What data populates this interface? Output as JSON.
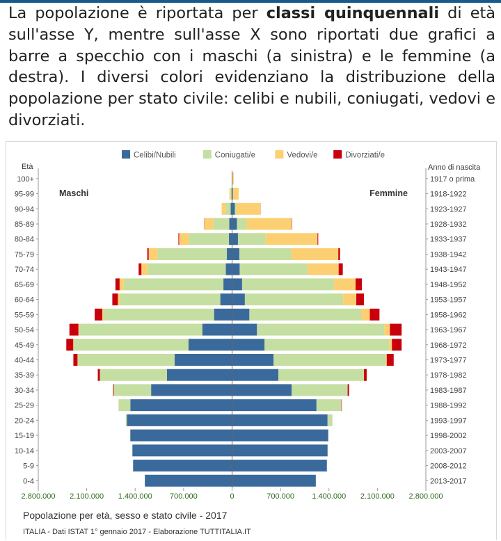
{
  "intro": {
    "part1": "La popolazione è riportata per ",
    "bold": "classi quinquennali",
    "part2": " di età sull'asse Y, mentre sull'asse X sono riportati due grafici a barre a specchio con i maschi (a sinistra) e le femmine (a destra). I diversi colori evidenziano la distribuzione della popolazione per stato civile: celibi e nubili, coniugati, vedovi e divorziati."
  },
  "chart_data": {
    "type": "bar",
    "orientation": "horizontal-mirrored",
    "title": "Popolazione per età, sesso e stato civile - 2017",
    "source": "ITALIA - Dati ISTAT 1° gennaio 2017 - Elaborazione TUTTITALIA.IT",
    "ylabel": "Età",
    "ylabel_right": "Anno di nascita",
    "left_label": "Maschi",
    "right_label": "Femmine",
    "xlim": [
      -2800000,
      2800000
    ],
    "x_ticks": [
      -2800000,
      -2100000,
      -1400000,
      -700000,
      0,
      700000,
      1400000,
      2100000,
      2800000
    ],
    "x_tick_labels": [
      "2.800.000",
      "2.100.000",
      "1.400.000",
      "700.000",
      "0",
      "700.000",
      "1.400.000",
      "2.100.000",
      "2.800.000"
    ],
    "categories": [
      "100+",
      "95-99",
      "90-94",
      "85-89",
      "80-84",
      "75-79",
      "70-74",
      "65-69",
      "60-64",
      "55-59",
      "50-54",
      "45-49",
      "40-44",
      "35-39",
      "30-34",
      "25-29",
      "20-24",
      "15-19",
      "10-14",
      "5-9",
      "0-4"
    ],
    "birth_years": [
      "1917 o prima",
      "1918-1922",
      "1923-1927",
      "1928-1932",
      "1933-1937",
      "1938-1942",
      "1943-1947",
      "1948-1952",
      "1953-1957",
      "1958-1962",
      "1963-1967",
      "1968-1972",
      "1973-1977",
      "1978-1982",
      "1983-1987",
      "1988-1992",
      "1993-1997",
      "1998-2002",
      "2003-2007",
      "2008-2012",
      "2013-2017"
    ],
    "legend_placement": "top",
    "grid": false,
    "series": [
      {
        "name": "Celibi/Nubili",
        "color": "#3a6a9c",
        "male": [
          1000,
          8000,
          20000,
          40000,
          45000,
          75000,
          90000,
          125000,
          170000,
          260000,
          430000,
          630000,
          830000,
          940000,
          1170000,
          1470000,
          1520000,
          1470000,
          1440000,
          1430000,
          1260000
        ],
        "female": [
          3000,
          10000,
          40000,
          70000,
          85000,
          105000,
          110000,
          145000,
          185000,
          250000,
          360000,
          470000,
          600000,
          670000,
          860000,
          1220000,
          1380000,
          1390000,
          1380000,
          1370000,
          1210000
        ]
      },
      {
        "name": "Coniugati/e",
        "color": "#c5dea1",
        "male": [
          1000,
          15000,
          70000,
          230000,
          580000,
          1000000,
          1130000,
          1440000,
          1450000,
          1600000,
          1780000,
          1660000,
          1400000,
          970000,
          540000,
          170000,
          15000,
          0,
          0,
          0,
          0
        ],
        "female": [
          0,
          5000,
          20000,
          140000,
          400000,
          750000,
          980000,
          1330000,
          1420000,
          1620000,
          1840000,
          1800000,
          1620000,
          1230000,
          810000,
          360000,
          70000,
          0,
          0,
          0,
          0
        ]
      },
      {
        "name": "Vedovi/e",
        "color": "#fcd072",
        "male": [
          2000,
          15000,
          60000,
          130000,
          140000,
          130000,
          90000,
          60000,
          30000,
          15000,
          10000,
          5000,
          3000,
          0,
          0,
          0,
          0,
          0,
          0,
          0,
          0
        ],
        "female": [
          20000,
          80000,
          350000,
          650000,
          750000,
          680000,
          450000,
          310000,
          190000,
          120000,
          80000,
          40000,
          15000,
          5000,
          0,
          0,
          0,
          0,
          0,
          0,
          0
        ]
      },
      {
        "name": "Divorziati/e",
        "color": "#c9000c",
        "male": [
          0,
          0,
          0,
          3000,
          10000,
          20000,
          40000,
          60000,
          80000,
          110000,
          130000,
          100000,
          60000,
          30000,
          10000,
          0,
          0,
          0,
          0,
          0,
          0
        ],
        "female": [
          0,
          0,
          2000,
          5000,
          10000,
          25000,
          60000,
          90000,
          110000,
          140000,
          170000,
          140000,
          100000,
          40000,
          20000,
          5000,
          0,
          0,
          0,
          0,
          0
        ]
      }
    ]
  }
}
